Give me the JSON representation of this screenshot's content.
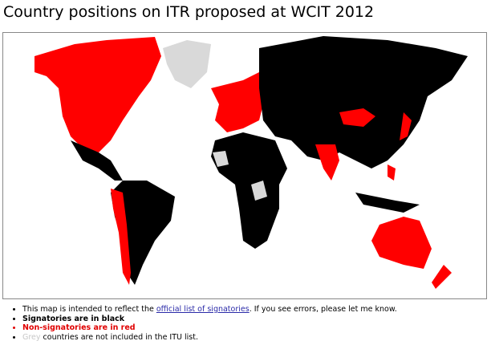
{
  "title": "Country positions on ITR proposed at WCIT 2012",
  "notes": [
    {
      "text": "This map is intended to reflect the ",
      "link": "official list of signatories",
      "after": ". If you see errors, please let me know."
    },
    {
      "text": "Signatories are in black"
    },
    {
      "text": "Non-signatories are in red"
    },
    {
      "highlight": "Grey",
      "text": " countries are not included in the ITU list."
    }
  ]
}
